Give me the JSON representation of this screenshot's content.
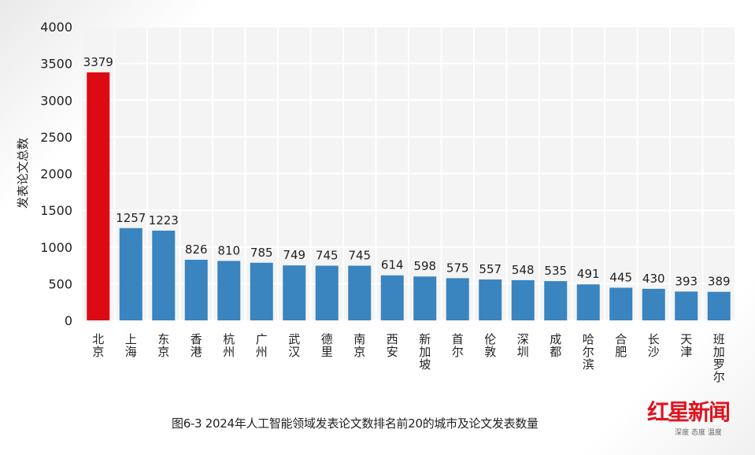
{
  "chart_data": {
    "type": "bar",
    "title": "",
    "xlabel": "",
    "ylabel": "发表论文总数",
    "ylim": [
      0,
      4000
    ],
    "yticks": [
      0,
      500,
      1000,
      1500,
      2000,
      2500,
      3000,
      3500,
      4000
    ],
    "grid": true,
    "categories": [
      "北京",
      "上海",
      "东京",
      "香港",
      "杭州",
      "广州",
      "武汉",
      "德里",
      "南京",
      "西安",
      "新加坡",
      "首尔",
      "伦敦",
      "深圳",
      "成都",
      "哈尔滨",
      "合肥",
      "长沙",
      "天津",
      "班加罗尔"
    ],
    "values": [
      3379,
      1257,
      1223,
      826,
      810,
      785,
      749,
      745,
      745,
      614,
      598,
      575,
      557,
      548,
      535,
      491,
      445,
      430,
      393,
      389
    ],
    "highlight_color": "#dc0a14",
    "bar_color": "#3a84c0"
  },
  "caption": "图6-3 2024年人工智能领域发表论文数排名前20的城市及论文发表数量",
  "logo": {
    "text": "红星新闻",
    "tagline": "深度 态度 温度"
  }
}
